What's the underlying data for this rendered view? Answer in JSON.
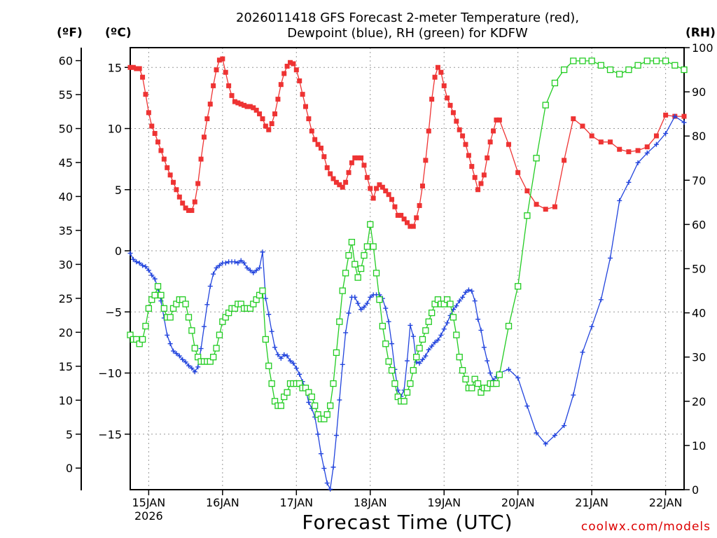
{
  "header": {
    "title_line1": "2026011418 GFS Forecast 2-meter Temperature (red),",
    "title_line2": "Dewpoint (blue), RH (green) for KDFW",
    "unit_f": "(ºF)",
    "unit_c": "(ºC)",
    "unit_rh": "(RH)"
  },
  "footer": {
    "xlabel": "Forecast Time (UTC)",
    "credit": "coolwx.com/models"
  },
  "colors": {
    "temperature": "#ee3333",
    "dewpoint": "#2244dd",
    "rh": "#22cc22",
    "grid": "#999999"
  },
  "chart_data": {
    "type": "line",
    "title": "2026011418 GFS Forecast 2-meter Temperature (red), Dewpoint (blue), RH (green) for KDFW",
    "xlabel": "Forecast Time (UTC)",
    "x_unit": "hours since 2026-01-14 18Z",
    "xlim": [
      0,
      180
    ],
    "x_ticks": [
      {
        "x": 6,
        "label": "15JAN",
        "sublabel": "2026"
      },
      {
        "x": 30,
        "label": "16JAN"
      },
      {
        "x": 54,
        "label": "17JAN"
      },
      {
        "x": 78,
        "label": "18JAN"
      },
      {
        "x": 102,
        "label": "19JAN"
      },
      {
        "x": 126,
        "label": "20JAN"
      },
      {
        "x": 150,
        "label": "21JAN"
      },
      {
        "x": 174,
        "label": "22JAN"
      }
    ],
    "y_left_c": {
      "label": "(ºC)",
      "lim": [
        -20,
        17
      ],
      "ticks": [
        15,
        10,
        5,
        0,
        -5,
        -10,
        -15
      ],
      "tick_labels": [
        "15",
        "10",
        "5",
        "0",
        "−5",
        "−10",
        "−15"
      ]
    },
    "y_left_f": {
      "label": "(ºF)",
      "ticks": [
        60,
        55,
        50,
        45,
        40,
        35,
        30,
        25,
        20,
        15,
        10,
        5,
        0
      ]
    },
    "y_right_rh": {
      "label": "(RH)",
      "lim": [
        0,
        100
      ],
      "ticks": [
        100,
        90,
        80,
        70,
        60,
        50,
        40,
        30,
        20,
        10,
        0
      ]
    },
    "grid": true,
    "series": [
      {
        "name": "Temperature",
        "unit": "C",
        "axis": "left",
        "marker": "filled-square",
        "x": [
          0,
          1,
          2,
          3,
          4,
          5,
          6,
          7,
          8,
          9,
          10,
          11,
          12,
          13,
          14,
          15,
          16,
          17,
          18,
          19,
          20,
          21,
          22,
          23,
          24,
          25,
          26,
          27,
          28,
          29,
          30,
          31,
          32,
          33,
          34,
          35,
          36,
          37,
          38,
          39,
          40,
          41,
          42,
          43,
          44,
          45,
          46,
          47,
          48,
          49,
          50,
          51,
          52,
          53,
          54,
          55,
          56,
          57,
          58,
          59,
          60,
          61,
          62,
          63,
          64,
          65,
          66,
          67,
          68,
          69,
          70,
          71,
          72,
          73,
          74,
          75,
          76,
          77,
          78,
          79,
          80,
          81,
          82,
          83,
          84,
          85,
          86,
          87,
          88,
          89,
          90,
          91,
          92,
          93,
          94,
          95,
          96,
          97,
          98,
          99,
          100,
          101,
          102,
          103,
          104,
          105,
          106,
          107,
          108,
          109,
          110,
          111,
          112,
          113,
          114,
          115,
          116,
          117,
          118,
          119,
          120,
          123,
          126,
          129,
          132,
          135,
          138,
          141,
          144,
          147,
          150,
          153,
          156,
          159,
          162,
          165,
          168,
          171,
          174,
          177,
          180
        ],
        "values": [
          15.0,
          15.0,
          14.9,
          14.9,
          14.2,
          12.8,
          11.3,
          10.2,
          9.6,
          8.9,
          8.2,
          7.5,
          6.8,
          6.2,
          5.6,
          5.0,
          4.4,
          3.9,
          3.5,
          3.3,
          3.3,
          4.0,
          5.5,
          7.5,
          9.3,
          10.8,
          12.0,
          13.5,
          14.8,
          15.6,
          15.7,
          14.6,
          13.5,
          12.7,
          12.2,
          12.1,
          12.0,
          11.9,
          11.8,
          11.8,
          11.7,
          11.5,
          11.2,
          10.8,
          10.2,
          9.9,
          10.4,
          11.2,
          12.4,
          13.6,
          14.5,
          15.1,
          15.4,
          15.3,
          14.8,
          13.9,
          12.8,
          11.8,
          10.8,
          9.8,
          9.1,
          8.7,
          8.4,
          7.7,
          6.8,
          6.3,
          5.9,
          5.6,
          5.4,
          5.2,
          5.6,
          6.4,
          7.2,
          7.6,
          7.6,
          7.6,
          7.0,
          6.0,
          5.1,
          4.3,
          5.1,
          5.4,
          5.2,
          4.9,
          4.6,
          4.2,
          3.6,
          2.9,
          2.9,
          2.6,
          2.3,
          2.0,
          2.0,
          2.7,
          3.7,
          5.3,
          7.4,
          9.8,
          12.4,
          14.2,
          15.0,
          14.6,
          13.5,
          12.5,
          11.9,
          11.3,
          10.6,
          9.9,
          9.4,
          8.7,
          7.8,
          6.9,
          6.0,
          5.0,
          5.5,
          6.2,
          7.6,
          8.9,
          9.8,
          10.7,
          10.7,
          8.7,
          6.4,
          4.9,
          3.8,
          3.4,
          3.6,
          7.4,
          10.8,
          10.2,
          9.4,
          8.9,
          8.9,
          8.3,
          8.1,
          8.2,
          8.5,
          9.4,
          11.1,
          11.0,
          11.0
        ]
      },
      {
        "name": "Dewpoint",
        "unit": "C",
        "axis": "left",
        "marker": "plus",
        "x": [
          0,
          1,
          2,
          3,
          4,
          5,
          6,
          7,
          8,
          9,
          10,
          11,
          12,
          13,
          14,
          15,
          16,
          17,
          18,
          19,
          20,
          21,
          22,
          23,
          24,
          25,
          26,
          27,
          28,
          29,
          30,
          31,
          32,
          33,
          34,
          35,
          36,
          37,
          38,
          39,
          40,
          41,
          42,
          43,
          44,
          45,
          46,
          47,
          48,
          49,
          50,
          51,
          52,
          53,
          54,
          55,
          56,
          57,
          58,
          59,
          60,
          61,
          62,
          63,
          64,
          65,
          66,
          67,
          68,
          69,
          70,
          71,
          72,
          73,
          74,
          75,
          76,
          77,
          78,
          79,
          80,
          81,
          82,
          83,
          84,
          85,
          86,
          87,
          88,
          89,
          90,
          91,
          92,
          93,
          94,
          95,
          96,
          97,
          98,
          99,
          100,
          101,
          102,
          103,
          104,
          105,
          106,
          107,
          108,
          109,
          110,
          111,
          112,
          113,
          114,
          115,
          116,
          117,
          118,
          119,
          120,
          123,
          126,
          129,
          132,
          135,
          138,
          141,
          144,
          147,
          150,
          153,
          156,
          159,
          162,
          165,
          168,
          171,
          174,
          177,
          180
        ],
        "values": [
          -0.2,
          -0.7,
          -0.9,
          -1.0,
          -1.2,
          -1.3,
          -1.6,
          -2.0,
          -2.3,
          -3.1,
          -4.1,
          -5.5,
          -6.9,
          -7.6,
          -8.2,
          -8.4,
          -8.6,
          -8.9,
          -9.1,
          -9.4,
          -9.6,
          -9.9,
          -9.5,
          -8.0,
          -6.2,
          -4.4,
          -2.9,
          -1.9,
          -1.4,
          -1.2,
          -1.0,
          -1.0,
          -0.9,
          -0.9,
          -0.9,
          -1.0,
          -0.8,
          -1.0,
          -1.4,
          -1.6,
          -1.8,
          -1.6,
          -1.4,
          -0.1,
          -3.9,
          -5.2,
          -6.6,
          -7.9,
          -8.5,
          -8.8,
          -8.5,
          -8.6,
          -9.0,
          -9.2,
          -9.6,
          -10.1,
          -10.7,
          -11.3,
          -12.4,
          -12.9,
          -13.6,
          -15.0,
          -16.6,
          -17.8,
          -19.0,
          -19.5,
          -17.7,
          -15.1,
          -12.2,
          -9.3,
          -6.7,
          -5.1,
          -3.8,
          -3.8,
          -4.3,
          -4.8,
          -4.6,
          -4.3,
          -3.8,
          -3.6,
          -3.6,
          -3.6,
          -3.9,
          -4.7,
          -5.8,
          -7.6,
          -9.7,
          -11.4,
          -11.9,
          -11.4,
          -9.0,
          -6.1,
          -7.0,
          -9.1,
          -9.2,
          -8.9,
          -8.6,
          -8.1,
          -7.8,
          -7.5,
          -7.3,
          -6.9,
          -6.4,
          -5.9,
          -5.3,
          -4.8,
          -4.5,
          -4.1,
          -3.8,
          -3.4,
          -3.2,
          -3.3,
          -4.1,
          -5.6,
          -6.5,
          -7.9,
          -9.0,
          -10.0,
          -10.6,
          -10.3,
          -10.0,
          -9.7,
          -10.4,
          -12.7,
          -14.9,
          -15.8,
          -15.1,
          -14.3,
          -11.8,
          -8.3,
          -6.2,
          -4.0,
          -0.6,
          4.1,
          5.6,
          7.2,
          8.0,
          8.7,
          9.6,
          11.0,
          10.5
        ]
      },
      {
        "name": "Relative Humidity",
        "unit": "%",
        "axis": "right",
        "marker": "open-square",
        "x": [
          0,
          1,
          2,
          3,
          4,
          5,
          6,
          7,
          8,
          9,
          10,
          11,
          12,
          13,
          14,
          15,
          16,
          17,
          18,
          19,
          20,
          21,
          22,
          23,
          24,
          25,
          26,
          27,
          28,
          29,
          30,
          31,
          32,
          33,
          34,
          35,
          36,
          37,
          38,
          39,
          40,
          41,
          42,
          43,
          44,
          45,
          46,
          47,
          48,
          49,
          50,
          51,
          52,
          53,
          54,
          55,
          56,
          57,
          58,
          59,
          60,
          61,
          62,
          63,
          64,
          65,
          66,
          67,
          68,
          69,
          70,
          71,
          72,
          73,
          74,
          75,
          76,
          77,
          78,
          79,
          80,
          81,
          82,
          83,
          84,
          85,
          86,
          87,
          88,
          89,
          90,
          91,
          92,
          93,
          94,
          95,
          96,
          97,
          98,
          99,
          100,
          101,
          102,
          103,
          104,
          105,
          106,
          107,
          108,
          109,
          110,
          111,
          112,
          113,
          114,
          115,
          116,
          117,
          118,
          119,
          120,
          123,
          126,
          129,
          132,
          135,
          138,
          141,
          144,
          147,
          150,
          153,
          156,
          159,
          162,
          165,
          168,
          171,
          174,
          177,
          180
        ],
        "values": [
          35,
          34,
          34,
          33,
          34,
          37,
          41,
          43,
          44,
          46,
          44,
          41,
          39,
          39,
          41,
          42,
          43,
          43,
          42,
          39,
          36,
          32,
          30,
          29,
          29,
          29,
          29,
          30,
          32,
          35,
          38,
          39,
          40,
          41,
          41,
          42,
          42,
          41,
          41,
          41,
          42,
          43,
          44,
          45,
          34,
          28,
          24,
          20,
          19,
          19,
          21,
          22,
          24,
          24,
          24,
          24,
          23,
          23,
          22,
          21,
          19,
          17,
          16,
          16,
          17,
          19,
          24,
          31,
          38,
          45,
          49,
          53,
          56,
          51,
          48,
          50,
          53,
          55,
          60,
          55,
          49,
          43,
          37,
          33,
          29,
          27,
          24,
          21,
          20,
          20,
          22,
          24,
          27,
          30,
          32,
          34,
          36,
          38,
          40,
          42,
          43,
          42,
          42,
          43,
          42,
          39,
          35,
          30,
          27,
          25,
          23,
          23,
          25,
          24,
          22,
          23,
          23,
          24,
          24,
          24,
          26,
          37,
          46,
          62,
          75,
          87,
          92,
          95,
          97,
          97,
          97,
          96,
          95,
          94,
          95,
          96,
          97,
          97,
          97,
          96,
          95
        ]
      }
    ]
  }
}
